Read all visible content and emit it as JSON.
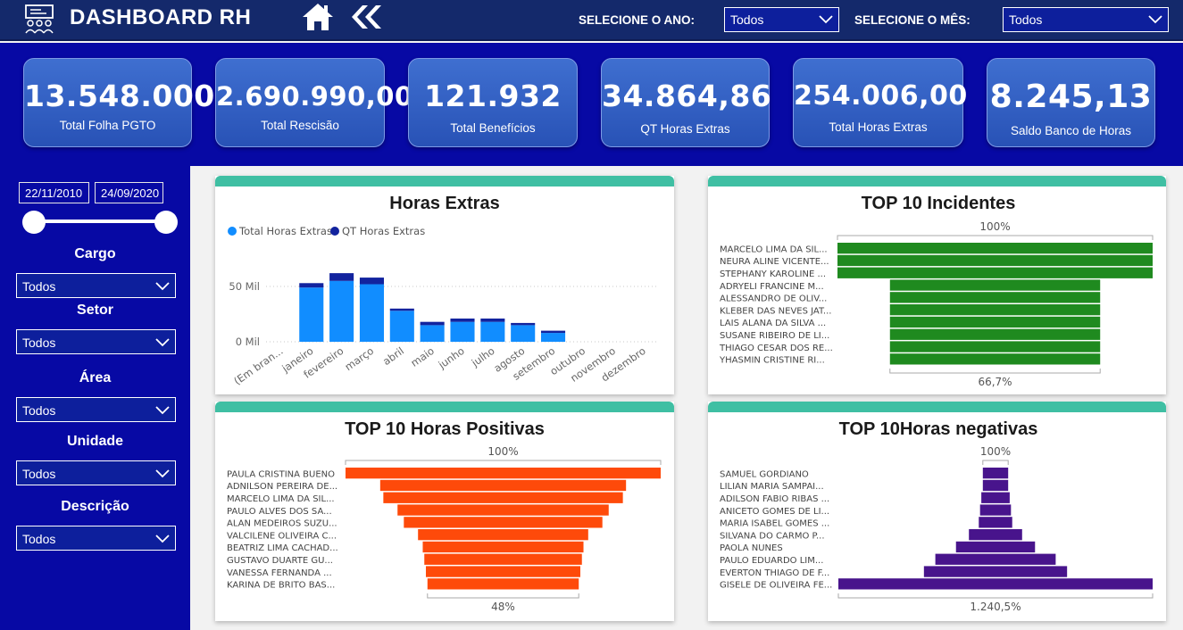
{
  "header": {
    "title": "DASHBOARD RH",
    "year_label": "SELECIONE O ANO:",
    "year_value": "Todos",
    "month_label": "SELECIONE O MÊS:",
    "month_value": "Todos",
    "icons": [
      "people-icon",
      "home-icon",
      "back-icon",
      "chevron-down-icon"
    ]
  },
  "kpis": [
    {
      "value": "13.548.000",
      "label": "Total Folha PGTO"
    },
    {
      "value": "2.690.990,00",
      "label": "Total Rescisão"
    },
    {
      "value": "121.932",
      "label": "Total Benefícios"
    },
    {
      "value": "34.864,86",
      "label": "QT Horas Extras"
    },
    {
      "value": "254.006,00",
      "label": "Total Horas Extras"
    },
    {
      "value": "8.245,13",
      "label": "Saldo Banco de Horas"
    }
  ],
  "sidebar": {
    "date_start": "22/11/2010",
    "date_end": "24/09/2020",
    "filters": [
      {
        "label": "Cargo",
        "value": "Todos"
      },
      {
        "label": "Setor",
        "value": "Todos"
      },
      {
        "label": "Área",
        "value": "Todos"
      },
      {
        "label": "Unidade",
        "value": "Todos"
      },
      {
        "label": "Descrição",
        "value": "Todos"
      }
    ]
  },
  "colors": {
    "topbar": "#14296b",
    "background": "#0709a4",
    "kpi_card": "#3060c2",
    "panel_cap": "#3fbfa3",
    "total_horas_extras": "#118dff",
    "qt_horas_extras": "#12239e",
    "incidentes": "#1f8a1f",
    "horas_positivas": "#fe4a0a",
    "horas_negativas": "#48148c"
  },
  "chart_data": [
    {
      "type": "bar",
      "stacked": true,
      "title": "Horas Extras",
      "categories": [
        "(Em bran...",
        "janeiro",
        "fevereiro",
        "março",
        "abril",
        "maio",
        "junho",
        "julho",
        "agosto",
        "setembro",
        "outubro",
        "novembro",
        "dezembro"
      ],
      "series": [
        {
          "name": "Total Horas Extras",
          "values": [
            0,
            49,
            55,
            52,
            28,
            15,
            18,
            18,
            15,
            8,
            0,
            0,
            0
          ]
        },
        {
          "name": "QT Horas Extras",
          "values": [
            0,
            4,
            7,
            6,
            2,
            3,
            3,
            3,
            2,
            2,
            0,
            0,
            0
          ]
        }
      ],
      "yticks": [
        "0 Mil",
        "50 Mil"
      ],
      "ylim": [
        0,
        60000
      ],
      "legend": "top-left",
      "grid": true
    },
    {
      "type": "funnel",
      "title": "TOP 10 Incidentes",
      "categories": [
        "MARCELO LIMA DA SIL...",
        "NEURA ALINE VICENTE...",
        "STEPHANY KAROLINE ...",
        "ADRYELI FRANCINE M...",
        "ALESSANDRO DE OLIV...",
        "KLEBER DAS NEVES JAT...",
        "LAIS ALANA DA SILVA ...",
        "SUSANE RIBEIRO DE LI...",
        "THIAGO CESAR DOS RE...",
        "YHASMIN CRISTINE RI..."
      ],
      "values": [
        100,
        100,
        100,
        66.7,
        66.7,
        66.7,
        66.7,
        66.7,
        66.7,
        66.7
      ],
      "top_label": "100%",
      "bottom_label": "66,7%"
    },
    {
      "type": "funnel",
      "title": "TOP 10 Horas Positivas",
      "categories": [
        "PAULA CRISTINA BUENO",
        "ADNILSON PEREIRA DE...",
        "MARCELO LIMA DA SIL...",
        "PAULO ALVES DOS SA...",
        "ALAN MEDEIROS SUZU...",
        "VALCILENE OLIVEIRA C...",
        "BEATRIZ LIMA CACHAD...",
        "GUSTAVO DUARTE GU...",
        "VANESSA FERNANDA ...",
        "KARINA DE BRITO BAS..."
      ],
      "values": [
        100,
        78,
        76,
        67,
        63,
        54,
        51,
        50,
        49,
        48
      ],
      "top_label": "100%",
      "bottom_label": "48%"
    },
    {
      "type": "funnel",
      "title": "TOP 10Horas negativas",
      "categories": [
        "SAMUEL GORDIANO",
        "LILIAN MARIA SAMPAI...",
        "ADILSON FABIO RIBAS ...",
        "ANICETO GOMES DE LI...",
        "MARIA ISABEL GOMES ...",
        "SILVANA DO CARMO P...",
        "PAOLA NUNES",
        "PAULO EDUARDO LIM...",
        "EVERTON THIAGO DE F...",
        "GISELE DE OLIVEIRA FE..."
      ],
      "values": [
        100,
        100,
        112,
        122,
        132,
        210,
        312,
        475,
        565,
        1240.5
      ],
      "top_label": "100%",
      "bottom_label": "1.240,5%"
    }
  ]
}
